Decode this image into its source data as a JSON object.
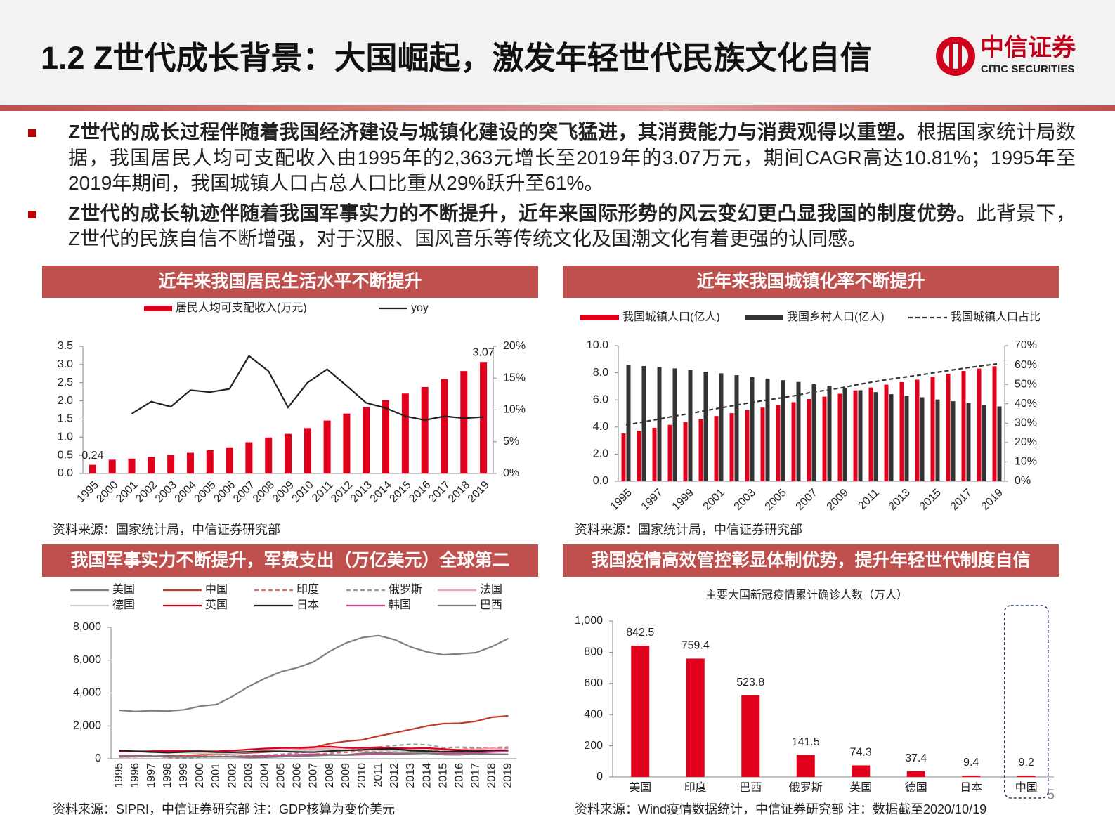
{
  "header": {
    "title": "1.2 Z世代成长背景：大国崛起，激发年轻世代民族文化自信",
    "logo_cn": "中信证券",
    "logo_en": "CITIC SECURITIES"
  },
  "bullets": [
    {
      "bold": "Z世代的成长过程伴随着我国经济建设与城镇化建设的突飞猛进，其消费能力与消费观得以重塑。",
      "text": "根据国家统计局数据，我国居民人均可支配收入由1995年的2,363元增长至2019年的3.07万元，期间CAGR高达10.81%；1995年至2019年期间，我国城镇人口占总人口比重从29%跃升至61%。"
    },
    {
      "bold": "Z世代的成长轨迹伴随着我国军事实力的不断提升，近年来国际形势的风云变幻更凸显我国的制度优势。",
      "text": "此背景下，Z世代的民族自信不断增强，对于汉服、国风音乐等传统文化及国潮文化有着更强的认同感。"
    }
  ],
  "page_number": 5,
  "chart_data": [
    {
      "type": "bar",
      "title": "近年来我国居民生活水平不断提升",
      "source": "资料来源：国家统计局，中信证券研究部",
      "categories": [
        "1995",
        "2000",
        "2001",
        "2002",
        "2003",
        "2004",
        "2005",
        "2006",
        "2007",
        "2008",
        "2009",
        "2010",
        "2011",
        "2012",
        "2013",
        "2014",
        "2015",
        "2016",
        "2017",
        "2018",
        "2019"
      ],
      "series": [
        {
          "name": "居民人均可支配收入(万元)",
          "color": "#e0001b",
          "values": [
            0.24,
            0.38,
            0.41,
            0.46,
            0.51,
            0.57,
            0.64,
            0.72,
            0.86,
            0.99,
            1.09,
            1.25,
            1.46,
            1.65,
            1.83,
            2.02,
            2.2,
            2.38,
            2.6,
            2.82,
            3.07
          ],
          "value_labels": [
            "0.24",
            null,
            null,
            null,
            null,
            null,
            null,
            null,
            null,
            null,
            null,
            null,
            null,
            null,
            null,
            null,
            null,
            null,
            null,
            null,
            "3.07"
          ]
        },
        {
          "name": "yoy",
          "type": "line",
          "axis": "y2",
          "color": "#222222",
          "values": [
            null,
            null,
            9.4,
            11.3,
            10.5,
            13.1,
            12.8,
            13.3,
            18.5,
            16.1,
            10.4,
            14.3,
            16.4,
            13.8,
            11.1,
            10.3,
            9.0,
            8.4,
            9.0,
            8.7,
            8.9
          ]
        }
      ],
      "ylim": [
        0,
        3.5
      ],
      "yticks": [
        {
          "value": 0,
          "label": "0.0"
        },
        {
          "value": 0.5,
          "label": "0.5"
        },
        {
          "value": 1,
          "label": "1.0"
        },
        {
          "value": 1.5,
          "label": "1.5"
        },
        {
          "value": 2,
          "label": "2.0"
        },
        {
          "value": 2.5,
          "label": "2.5"
        },
        {
          "value": 3,
          "label": "3.0"
        },
        {
          "value": 3.5,
          "label": "3.5"
        }
      ],
      "y2lim": [
        0,
        20
      ],
      "y2ticks": [
        {
          "value": 0,
          "label": "0%"
        },
        {
          "value": 5,
          "label": "5%"
        },
        {
          "value": 10,
          "label": "10%"
        },
        {
          "value": 15,
          "label": "15%"
        },
        {
          "value": 20,
          "label": "20%"
        }
      ]
    },
    {
      "type": "bar",
      "title": "近年来我国城镇化率不断提升",
      "source": "资料来源：国家统计局，中信证券研究部",
      "categories": [
        "1995",
        null,
        "1997",
        null,
        "1999",
        null,
        "2001",
        null,
        "2003",
        null,
        "2005",
        null,
        "2007",
        null,
        "2009",
        null,
        "2011",
        null,
        "2013",
        null,
        "2015",
        null,
        "2017",
        null,
        "2019"
      ],
      "series": [
        {
          "name": "我国城镇人口(亿人)",
          "color": "#e0001b",
          "values": [
            3.52,
            3.73,
            3.94,
            4.16,
            4.37,
            4.59,
            4.81,
            5.02,
            5.24,
            5.43,
            5.62,
            5.83,
            6.06,
            6.24,
            6.45,
            6.7,
            6.91,
            7.12,
            7.31,
            7.49,
            7.71,
            7.93,
            8.13,
            8.31,
            8.48
          ]
        },
        {
          "name": "我国乡村人口(亿人)",
          "color": "#333333",
          "values": [
            8.59,
            8.5,
            8.42,
            8.32,
            8.2,
            8.08,
            7.96,
            7.82,
            7.68,
            7.57,
            7.45,
            7.32,
            7.15,
            7.04,
            6.89,
            6.71,
            6.57,
            6.42,
            6.3,
            6.19,
            6.03,
            5.9,
            5.77,
            5.64,
            5.52
          ]
        },
        {
          "name": "我国城镇人口占比",
          "type": "line",
          "axis": "y2",
          "dash": true,
          "color": "#333333",
          "values": [
            29.0,
            30.5,
            31.9,
            33.4,
            34.8,
            36.2,
            37.7,
            39.1,
            40.5,
            41.8,
            43.0,
            44.3,
            45.9,
            47.0,
            48.3,
            49.9,
            51.3,
            52.6,
            53.7,
            54.8,
            56.1,
            57.3,
            58.5,
            59.6,
            60.6
          ]
        }
      ],
      "ylim": [
        0,
        10
      ],
      "yticks": [
        {
          "value": 0,
          "label": "0.0"
        },
        {
          "value": 2,
          "label": "2.0"
        },
        {
          "value": 4,
          "label": "4.0"
        },
        {
          "value": 6,
          "label": "6.0"
        },
        {
          "value": 8,
          "label": "8.0"
        },
        {
          "value": 10,
          "label": "10.0"
        }
      ],
      "y2lim": [
        0,
        70
      ],
      "y2ticks": [
        {
          "value": 0,
          "label": "0%"
        },
        {
          "value": 10,
          "label": "10%"
        },
        {
          "value": 20,
          "label": "20%"
        },
        {
          "value": 30,
          "label": "30%"
        },
        {
          "value": 40,
          "label": "40%"
        },
        {
          "value": 50,
          "label": "50%"
        },
        {
          "value": 60,
          "label": "60%"
        },
        {
          "value": 70,
          "label": "70%"
        }
      ]
    },
    {
      "type": "line",
      "title": "我国军事实力不断提升，军费支出（万亿美元）全球第二",
      "source": "资料来源：SIPRI，中信证券研究部  注：GDP核算为变价美元",
      "categories": [
        "1995",
        "1996",
        "1997",
        "1998",
        "1999",
        "2000",
        "2001",
        "2002",
        "2003",
        "2004",
        "2005",
        "2006",
        "2007",
        "2008",
        "2009",
        "2010",
        "2011",
        "2012",
        "2013",
        "2014",
        "2015",
        "2016",
        "2017",
        "2018",
        "2019"
      ],
      "series": [
        {
          "name": "美国",
          "color": "#808080",
          "values": [
            2950,
            2880,
            2920,
            2900,
            2980,
            3200,
            3300,
            3800,
            4400,
            4900,
            5300,
            5550,
            5900,
            6550,
            7050,
            7380,
            7500,
            7250,
            6800,
            6500,
            6330,
            6390,
            6460,
            6830,
            7320
          ]
        },
        {
          "name": "中国",
          "color": "#c0392b",
          "values": [
            126,
            136,
            146,
            170,
            196,
            229,
            276,
            323,
            357,
            404,
            459,
            548,
            683,
            930,
            1060,
            1150,
            1380,
            1580,
            1790,
            2000,
            2140,
            2160,
            2280,
            2530,
            2610
          ]
        },
        {
          "name": "印度",
          "color": "#e07070",
          "dash": true,
          "values": [
            100,
            110,
            130,
            130,
            150,
            150,
            150,
            150,
            170,
            210,
            230,
            240,
            280,
            330,
            390,
            460,
            490,
            470,
            470,
            500,
            510,
            560,
            640,
            670,
            710
          ]
        },
        {
          "name": "俄罗斯",
          "color": "#999999",
          "dash": true,
          "values": [
            130,
            160,
            180,
            80,
            60,
            90,
            120,
            140,
            170,
            210,
            270,
            350,
            430,
            560,
            520,
            590,
            700,
            810,
            880,
            850,
            670,
            700,
            670,
            620,
            650
          ]
        },
        {
          "name": "法国",
          "color": "#f4a0b0",
          "values": [
            480,
            480,
            430,
            400,
            400,
            350,
            340,
            360,
            440,
            520,
            520,
            540,
            600,
            660,
            670,
            610,
            640,
            600,
            620,
            630,
            530,
            550,
            570,
            640,
            520
          ]
        },
        {
          "name": "德国",
          "color": "#cccccc",
          "values": [
            460,
            440,
            380,
            380,
            380,
            330,
            320,
            340,
            410,
            460,
            460,
            460,
            500,
            550,
            540,
            500,
            520,
            490,
            480,
            470,
            400,
            420,
            440,
            470,
            490
          ]
        },
        {
          "name": "英国",
          "color": "#e0001b",
          "values": [
            450,
            440,
            460,
            470,
            470,
            460,
            450,
            490,
            560,
            620,
            650,
            660,
            710,
            740,
            660,
            660,
            700,
            650,
            630,
            650,
            590,
            530,
            500,
            500,
            490
          ]
        },
        {
          "name": "日本",
          "color": "#222222",
          "values": [
            500,
            450,
            410,
            370,
            410,
            450,
            400,
            390,
            420,
            450,
            440,
            410,
            400,
            460,
            510,
            540,
            600,
            600,
            490,
            460,
            420,
            470,
            450,
            470,
            480
          ]
        },
        {
          "name": "韩国",
          "color": "#d0408a",
          "values": [
            170,
            180,
            160,
            110,
            120,
            130,
            120,
            130,
            150,
            170,
            210,
            240,
            270,
            240,
            220,
            250,
            280,
            290,
            310,
            330,
            330,
            340,
            360,
            410,
            440
          ]
        },
        {
          "name": "巴西",
          "color": "#777777",
          "values": [
            120,
            130,
            140,
            140,
            100,
            120,
            130,
            110,
            80,
            90,
            120,
            150,
            190,
            230,
            230,
            330,
            360,
            330,
            330,
            330,
            250,
            240,
            300,
            280,
            270
          ]
        }
      ],
      "ylim": [
        0,
        8000
      ],
      "yticks": [
        0,
        {
          "value": 2000,
          "label": "2,000"
        },
        {
          "value": 4000,
          "label": "4,000"
        },
        {
          "value": 6000,
          "label": "6,000"
        },
        {
          "value": 8000,
          "label": "8,000"
        }
      ]
    },
    {
      "type": "bar",
      "title": "我国疫情高效管控彰显体制优势，提升年轻世代制度自信",
      "subtitle": "主要大国新冠疫情累计确诊人数（万人）",
      "source": "资料来源：Wind疫情数据统计，中信证券研究部  注：数据截至2020/10/19",
      "categories": [
        "美国",
        "印度",
        "巴西",
        "俄罗斯",
        "英国",
        "德国",
        "日本",
        "中国"
      ],
      "values": [
        842.5,
        759.4,
        523.8,
        141.5,
        74.3,
        37.4,
        9.4,
        9.2
      ],
      "color": "#e0001b",
      "data_labels": true,
      "ylim": [
        0,
        1000
      ],
      "yticks": [
        0,
        200,
        400,
        600,
        800,
        {
          "value": 1000,
          "label": "1,000"
        }
      ]
    }
  ]
}
